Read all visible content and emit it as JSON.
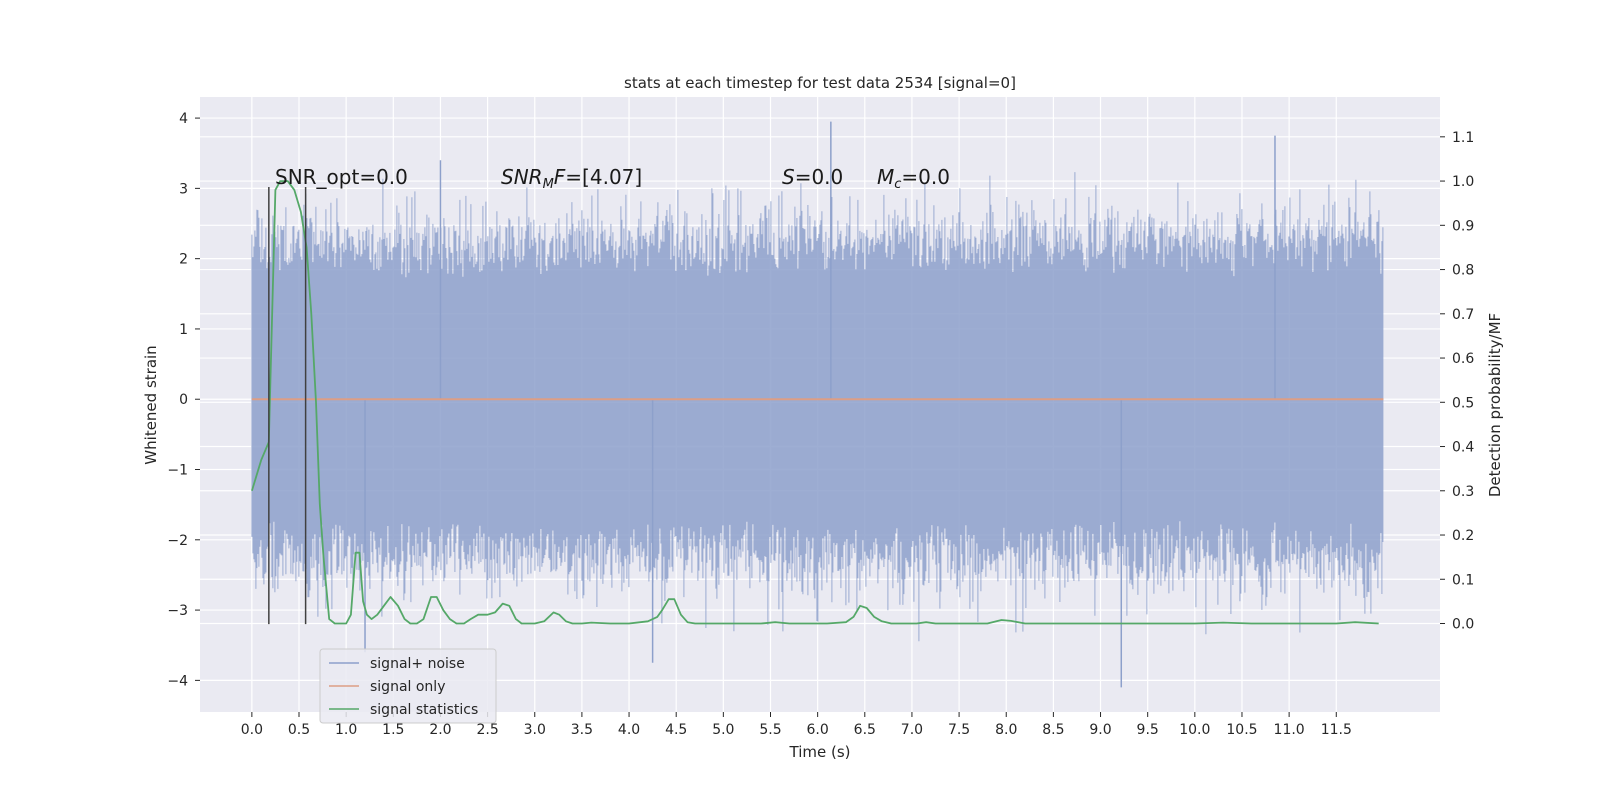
{
  "chart_data": {
    "type": "line",
    "title": "stats at each timestep for test data 2534 [signal=0]",
    "xlabel": "Time (s)",
    "ylabel": "Whitened strain",
    "ylabel_right": "Detection probability/MF",
    "xlim": [
      -0.55,
      12.6
    ],
    "xticks": [
      0.0,
      0.5,
      1.0,
      1.5,
      2.0,
      2.5,
      3.0,
      3.5,
      4.0,
      4.5,
      5.0,
      5.5,
      6.0,
      6.5,
      7.0,
      7.5,
      8.0,
      8.5,
      9.0,
      9.5,
      10.0,
      10.5,
      11.0,
      11.5
    ],
    "xtick_labels": [
      "0.0",
      "0.5",
      "1.0",
      "1.5",
      "2.0",
      "2.5",
      "3.0",
      "3.5",
      "4.0",
      "4.5",
      "5.0",
      "5.5",
      "6.0",
      "6.5",
      "7.0",
      "7.5",
      "8.0",
      "8.5",
      "9.0",
      "9.5",
      "10.0",
      "10.5",
      "11.0",
      "11.5"
    ],
    "ylim_left": [
      -4.45,
      4.3
    ],
    "yticks_left": [
      -4,
      -3,
      -2,
      -1,
      0,
      1,
      2,
      3,
      4
    ],
    "ytick_labels_left": [
      "−4",
      "−3",
      "−2",
      "−1",
      "0",
      "1",
      "2",
      "3",
      "4"
    ],
    "ylim_right": [
      -0.2,
      1.19
    ],
    "yticks_right": [
      0.0,
      0.1,
      0.2,
      0.3,
      0.4,
      0.5,
      0.6,
      0.7,
      0.8,
      0.9,
      1.0,
      1.1
    ],
    "ytick_labels_right": [
      "0.0",
      "0.1",
      "0.2",
      "0.3",
      "0.4",
      "0.5",
      "0.6",
      "0.7",
      "0.8",
      "0.9",
      "1.0",
      "1.1"
    ],
    "grid": true,
    "legend_position": "lower-left",
    "noise": {
      "t_start": 0.0,
      "t_end": 12.0,
      "typical_abs_max": 2.3,
      "observed_max": 3.95,
      "observed_min": -4.1
    },
    "series": [
      {
        "name": "signal+ noise",
        "color": "#8da0cb",
        "kind": "noise-timeseries"
      },
      {
        "name": "signal only",
        "color": "#dd9e85",
        "x": [
          0.0,
          12.0
        ],
        "y": [
          0.0,
          0.0
        ]
      },
      {
        "name": "signal statistics",
        "color": "#55a868",
        "x": [
          0.0,
          0.1,
          0.18,
          0.25,
          0.3,
          0.38,
          0.45,
          0.52,
          0.58,
          0.63,
          0.68,
          0.72,
          0.76,
          0.82,
          0.88,
          0.95,
          1.0,
          1.05,
          1.1,
          1.14,
          1.18,
          1.22,
          1.27,
          1.33,
          1.4,
          1.47,
          1.55,
          1.62,
          1.68,
          1.75,
          1.82,
          1.9,
          1.96,
          2.03,
          2.1,
          2.17,
          2.25,
          2.32,
          2.4,
          2.5,
          2.58,
          2.66,
          2.73,
          2.8,
          2.86,
          2.92,
          3.0,
          3.1,
          3.2,
          3.26,
          3.33,
          3.4,
          3.5,
          3.6,
          3.8,
          4.0,
          4.2,
          4.3,
          4.35,
          4.42,
          4.48,
          4.55,
          4.62,
          4.7,
          4.8,
          5.0,
          5.2,
          5.4,
          5.55,
          5.7,
          5.9,
          6.1,
          6.3,
          6.38,
          6.45,
          6.52,
          6.6,
          6.68,
          6.78,
          6.9,
          7.05,
          7.15,
          7.25,
          7.5,
          7.8,
          7.95,
          8.05,
          8.2,
          8.5,
          9.0,
          9.5,
          10.0,
          10.3,
          10.6,
          11.0,
          11.3,
          11.5,
          11.7,
          11.95
        ],
        "y": [
          0.3,
          0.37,
          0.41,
          0.98,
          1.0,
          1.0,
          0.98,
          0.93,
          0.85,
          0.7,
          0.5,
          0.27,
          0.15,
          0.01,
          0.0,
          0.0,
          0.0,
          0.02,
          0.16,
          0.16,
          0.05,
          0.02,
          0.01,
          0.02,
          0.04,
          0.06,
          0.04,
          0.01,
          0.0,
          0.0,
          0.01,
          0.06,
          0.06,
          0.03,
          0.01,
          0.0,
          0.0,
          0.01,
          0.02,
          0.02,
          0.025,
          0.045,
          0.04,
          0.01,
          0.0,
          0.0,
          0.0,
          0.005,
          0.025,
          0.02,
          0.005,
          0.0,
          0.0,
          0.002,
          0.0,
          0.0,
          0.005,
          0.015,
          0.03,
          0.055,
          0.055,
          0.02,
          0.003,
          0.0,
          0.0,
          0.0,
          0.0,
          0.0,
          0.003,
          0.0,
          0.0,
          0.0,
          0.003,
          0.015,
          0.04,
          0.035,
          0.015,
          0.005,
          0.0,
          0.0,
          0.0,
          0.003,
          0.0,
          0.0,
          0.0,
          0.008,
          0.006,
          0.0,
          0.0,
          0.0,
          0.0,
          0.0,
          0.002,
          0.0,
          0.0,
          0.0,
          0.0,
          0.003,
          0.0
        ]
      }
    ],
    "markers": {
      "color": "#404040",
      "x": [
        0.18,
        0.57
      ],
      "y_range_left": [
        -3.2,
        3.02
      ]
    },
    "annotations": [
      {
        "text": "SNR_opt=0.0",
        "x": 0.2,
        "y": 3.1
      },
      {
        "text": "=[4.07]",
        "math": "SNR_MF",
        "x": 2.6,
        "y": 3.1
      },
      {
        "text": "=0.0",
        "math": "S",
        "x": 5.6,
        "y": 3.1
      },
      {
        "text": "=0.0",
        "math": "Mc",
        "x": 6.6,
        "y": 3.1
      }
    ],
    "colors": {
      "plot_background": "#eaeaf2",
      "grid": "#ffffff",
      "noise": "#8da0cb",
      "signal": "#dd9e85",
      "statistic": "#55a868",
      "marker": "#404040"
    }
  }
}
